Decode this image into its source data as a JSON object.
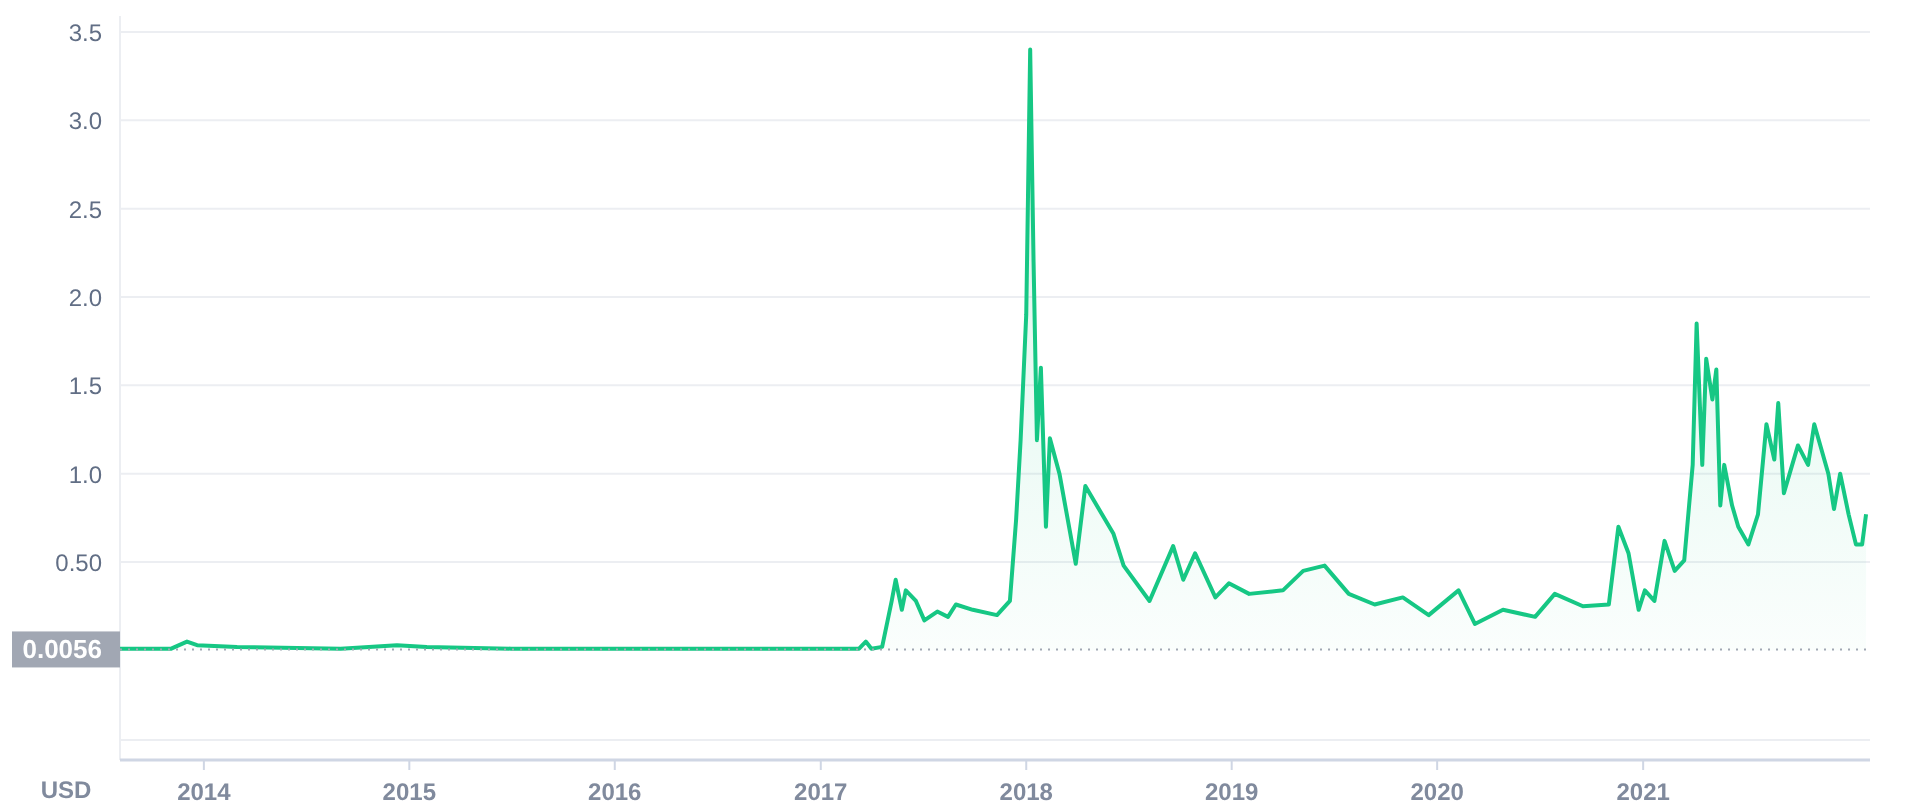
{
  "chart_data": {
    "type": "area",
    "ylabel": "USD",
    "x": [
      "2013-08-05",
      "2013-11-04",
      "2013-12-02",
      "2013-12-20",
      "2014-03-01",
      "2014-09-01",
      "2014-12-10",
      "2015-02-01",
      "2015-07-01",
      "2016-06-01",
      "2017-03-10",
      "2017-03-22",
      "2017-04-01",
      "2017-04-20",
      "2017-05-07",
      "2017-05-14",
      "2017-05-25",
      "2017-06-01",
      "2017-06-19",
      "2017-07-04",
      "2017-07-27",
      "2017-08-15",
      "2017-08-29",
      "2017-09-28",
      "2017-11-10",
      "2017-12-03",
      "2017-12-14",
      "2017-12-22",
      "2018-01-01",
      "2018-01-08",
      "2018-01-14",
      "2018-01-20",
      "2018-01-27",
      "2018-02-05",
      "2018-02-12",
      "2018-03-01",
      "2018-03-30",
      "2018-04-16",
      "2018-06-05",
      "2018-06-23",
      "2018-08-08",
      "2018-09-19",
      "2018-10-07",
      "2018-10-28",
      "2018-12-03",
      "2018-12-27",
      "2019-02-01",
      "2019-04-02",
      "2019-05-08",
      "2019-06-15",
      "2019-07-28",
      "2019-09-12",
      "2019-11-01",
      "2019-12-17",
      "2020-02-08",
      "2020-03-08",
      "2020-04-27",
      "2020-06-23",
      "2020-07-28",
      "2020-09-16",
      "2020-11-01",
      "2020-11-18",
      "2020-12-06",
      "2020-12-24",
      "2021-01-04",
      "2021-01-21",
      "2021-02-08",
      "2021-02-26",
      "2021-03-15",
      "2021-03-30",
      "2021-04-06",
      "2021-04-16",
      "2021-04-23",
      "2021-05-04",
      "2021-05-11",
      "2021-05-18",
      "2021-05-25",
      "2021-06-08",
      "2021-06-19",
      "2021-07-07",
      "2021-07-24",
      "2021-08-08",
      "2021-08-22",
      "2021-08-29",
      "2021-09-08",
      "2021-10-03",
      "2021-10-21",
      "2021-11-01",
      "2021-11-26",
      "2021-12-06",
      "2021-12-17",
      "2022-01-01",
      "2022-01-14",
      "2022-01-25",
      "2022-02-01"
    ],
    "series": [
      {
        "color": "#16c784",
        "values": [
          0.01,
          0.01,
          0.05,
          0.03,
          0.02,
          0.01,
          0.03,
          0.02,
          0.01,
          0.01,
          0.01,
          0.05,
          0.01,
          0.02,
          0.28,
          0.4,
          0.23,
          0.34,
          0.28,
          0.17,
          0.22,
          0.19,
          0.26,
          0.23,
          0.2,
          0.28,
          0.74,
          1.19,
          1.9,
          3.4,
          2.2,
          1.19,
          1.6,
          0.7,
          1.2,
          1.0,
          0.49,
          0.93,
          0.66,
          0.48,
          0.28,
          0.59,
          0.4,
          0.55,
          0.3,
          0.38,
          0.32,
          0.34,
          0.45,
          0.48,
          0.32,
          0.26,
          0.3,
          0.2,
          0.34,
          0.15,
          0.23,
          0.19,
          0.32,
          0.25,
          0.26,
          0.7,
          0.55,
          0.23,
          0.34,
          0.28,
          0.62,
          0.45,
          0.51,
          1.05,
          1.85,
          1.05,
          1.65,
          1.42,
          1.59,
          0.82,
          1.05,
          0.82,
          0.7,
          0.6,
          0.77,
          1.28,
          1.08,
          1.4,
          0.89,
          1.16,
          1.05,
          1.28,
          1.0,
          0.8,
          1.0,
          0.77,
          0.6,
          0.6,
          0.77
        ]
      }
    ],
    "xlim": [
      "2013-08-05",
      "2022-02-08"
    ],
    "xticks": [
      {
        "value": "2014-01-01",
        "label": "2014"
      },
      {
        "value": "2015-01-01",
        "label": "2015"
      },
      {
        "value": "2016-01-01",
        "label": "2016"
      },
      {
        "value": "2017-01-01",
        "label": "2017"
      },
      {
        "value": "2018-01-01",
        "label": "2018"
      },
      {
        "value": "2019-01-01",
        "label": "2019"
      },
      {
        "value": "2020-01-01",
        "label": "2020"
      },
      {
        "value": "2021-01-01",
        "label": "2021"
      }
    ],
    "ylim": [
      -0.62,
      3.59
    ],
    "yticks": [
      {
        "value": 0.5,
        "label": "0.50"
      },
      {
        "value": 1,
        "label": "1.0"
      },
      {
        "value": 1.5,
        "label": "1.5"
      },
      {
        "value": 2,
        "label": "2.0"
      },
      {
        "value": 2.5,
        "label": "2.5"
      },
      {
        "value": 3,
        "label": "3.0"
      },
      {
        "value": 3.5,
        "label": "3.5"
      }
    ],
    "ref_lines": [
      {
        "axis": "y",
        "value": 0.0056,
        "label": "0.0056",
        "line_style": "dotted",
        "color": "#a1a7b3"
      }
    ],
    "grid": "y"
  }
}
